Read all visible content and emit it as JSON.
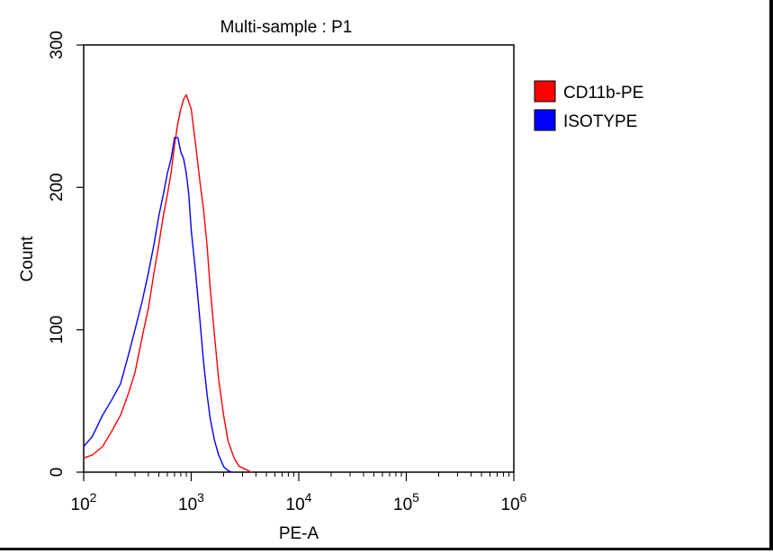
{
  "chart_data": {
    "type": "line",
    "title": "Multi-sample : P1",
    "xlabel": "PE-A",
    "ylabel": "Count",
    "x_scale": "log",
    "xlim": [
      100,
      1000000
    ],
    "ylim": [
      0,
      300
    ],
    "x_ticks": [
      {
        "base": "10",
        "exp": "2",
        "value": 100
      },
      {
        "base": "10",
        "exp": "3",
        "value": 1000
      },
      {
        "base": "10",
        "exp": "4",
        "value": 10000
      },
      {
        "base": "10",
        "exp": "5",
        "value": 100000
      },
      {
        "base": "10",
        "exp": "6",
        "value": 1000000
      }
    ],
    "y_ticks": [
      {
        "label": "0",
        "value": 0
      },
      {
        "label": "100",
        "value": 100
      },
      {
        "label": "200",
        "value": 200
      },
      {
        "label": "300",
        "value": 300
      }
    ],
    "grid": false,
    "legend_position": "right",
    "series": [
      {
        "name": "CD11b-PE",
        "color": "#ff0000",
        "points": [
          [
            100,
            10
          ],
          [
            120,
            12
          ],
          [
            150,
            18
          ],
          [
            180,
            28
          ],
          [
            220,
            40
          ],
          [
            260,
            55
          ],
          [
            300,
            70
          ],
          [
            350,
            95
          ],
          [
            400,
            115
          ],
          [
            450,
            140
          ],
          [
            500,
            160
          ],
          [
            550,
            180
          ],
          [
            600,
            195
          ],
          [
            650,
            210
          ],
          [
            700,
            230
          ],
          [
            750,
            245
          ],
          [
            800,
            255
          ],
          [
            850,
            262
          ],
          [
            900,
            265
          ],
          [
            950,
            260
          ],
          [
            1000,
            255
          ],
          [
            1100,
            230
          ],
          [
            1200,
            205
          ],
          [
            1300,
            185
          ],
          [
            1400,
            160
          ],
          [
            1500,
            130
          ],
          [
            1650,
            95
          ],
          [
            1800,
            65
          ],
          [
            2000,
            40
          ],
          [
            2200,
            22
          ],
          [
            2500,
            10
          ],
          [
            2800,
            4
          ],
          [
            3200,
            2
          ],
          [
            3600,
            0
          ]
        ]
      },
      {
        "name": "ISOTYPE",
        "color": "#0000ff",
        "points": [
          [
            100,
            18
          ],
          [
            120,
            25
          ],
          [
            150,
            40
          ],
          [
            180,
            50
          ],
          [
            220,
            62
          ],
          [
            260,
            82
          ],
          [
            300,
            100
          ],
          [
            350,
            120
          ],
          [
            400,
            140
          ],
          [
            450,
            160
          ],
          [
            500,
            180
          ],
          [
            550,
            195
          ],
          [
            600,
            210
          ],
          [
            650,
            220
          ],
          [
            700,
            235
          ],
          [
            750,
            235
          ],
          [
            800,
            225
          ],
          [
            850,
            220
          ],
          [
            900,
            210
          ],
          [
            950,
            195
          ],
          [
            1000,
            170
          ],
          [
            1100,
            140
          ],
          [
            1200,
            108
          ],
          [
            1300,
            78
          ],
          [
            1400,
            55
          ],
          [
            1500,
            38
          ],
          [
            1650,
            22
          ],
          [
            1800,
            12
          ],
          [
            2000,
            4
          ],
          [
            2200,
            1
          ],
          [
            2400,
            0
          ]
        ]
      }
    ]
  }
}
